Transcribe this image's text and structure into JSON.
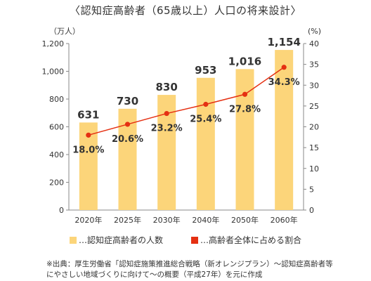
{
  "title": "〈認知症高齢者（65歳以上）人口の将来設計〉",
  "colors": {
    "bar": "#fcd57a",
    "line": "#e53012",
    "axis": "#888888"
  },
  "legend": {
    "bar_label": "…認知症高齢者の人数",
    "line_label": "…高齢者全体に占める割合"
  },
  "note": {
    "line1": "※出典：厚生労働省「認知症施策推進総合戦略（新オレンジプラン）〜認知症高齢者等",
    "line2": "にやさしい地域づくりに向けて〜の概要（平成27年）を元に作成"
  },
  "chart_data": {
    "type": "bar",
    "categories": [
      "2020年",
      "2025年",
      "2030年",
      "2040年",
      "2050年",
      "2060年"
    ],
    "series": [
      {
        "name": "認知症高齢者の人数",
        "type": "bar",
        "axis": "left",
        "values": [
          631,
          730,
          830,
          953,
          1016,
          1154
        ],
        "labels": [
          "631",
          "730",
          "830",
          "953",
          "1,016",
          "1,154"
        ]
      },
      {
        "name": "高齢者全体に占める割合",
        "type": "line",
        "axis": "right",
        "values": [
          18.0,
          20.6,
          23.2,
          25.4,
          27.8,
          34.3
        ],
        "labels": [
          "18.0%",
          "20.6%",
          "23.2%",
          "25.4%",
          "27.8%",
          "34.3%"
        ]
      }
    ],
    "left_axis": {
      "unit": "（万人）",
      "min": 0,
      "max": 1200,
      "ticks": [
        0,
        200,
        400,
        600,
        800,
        1000,
        1200
      ],
      "tick_labels": [
        "0",
        "200",
        "400",
        "600",
        "800",
        "1,000",
        "1,200"
      ]
    },
    "right_axis": {
      "unit": "(%)",
      "min": 0,
      "max": 40,
      "ticks": [
        0,
        5,
        10,
        15,
        20,
        25,
        30,
        35,
        40
      ],
      "tick_labels": [
        "0",
        "5",
        "10",
        "15",
        "20",
        "25",
        "30",
        "35",
        "40"
      ]
    },
    "grid": false,
    "legend_position": "bottom"
  }
}
